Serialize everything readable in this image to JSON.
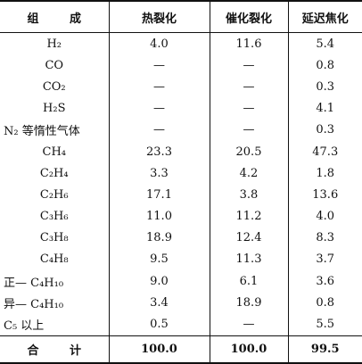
{
  "table": {
    "header": [
      "组 成",
      "热裂化",
      "催化裂化",
      "延迟焦化"
    ],
    "rows": [
      [
        "H₂",
        "4.0",
        "11.6",
        "5.4"
      ],
      [
        "CO",
        "—",
        "—",
        "0.8"
      ],
      [
        "CO₂",
        "—",
        "—",
        "0.3"
      ],
      [
        "H₂S",
        "—",
        "—",
        "4.1"
      ],
      [
        "N₂ 等惰性气体",
        "—",
        "—",
        "0.3"
      ],
      [
        "CH₄",
        "23.3",
        "20.5",
        "47.3"
      ],
      [
        "C₂H₄",
        "3.3",
        "4.2",
        "1.8"
      ],
      [
        "C₂H₆",
        "17.1",
        "3.8",
        "13.6"
      ],
      [
        "C₃H₆",
        "11.0",
        "11.2",
        "4.0"
      ],
      [
        "C₃H₈",
        "18.9",
        "12.4",
        "8.3"
      ],
      [
        "C₄H₈",
        "9.5",
        "11.3",
        "3.7"
      ],
      [
        "正— C₄H₁₀",
        "9.0",
        "6.1",
        "3.6"
      ],
      [
        "异— C₄H₁₀",
        "3.4",
        "18.9",
        "0.8"
      ],
      [
        "C₅ 以上",
        "0.5",
        "—",
        "5.5"
      ]
    ],
    "total": [
      "合 计",
      "100.0",
      "100.0",
      "99.5"
    ]
  }
}
